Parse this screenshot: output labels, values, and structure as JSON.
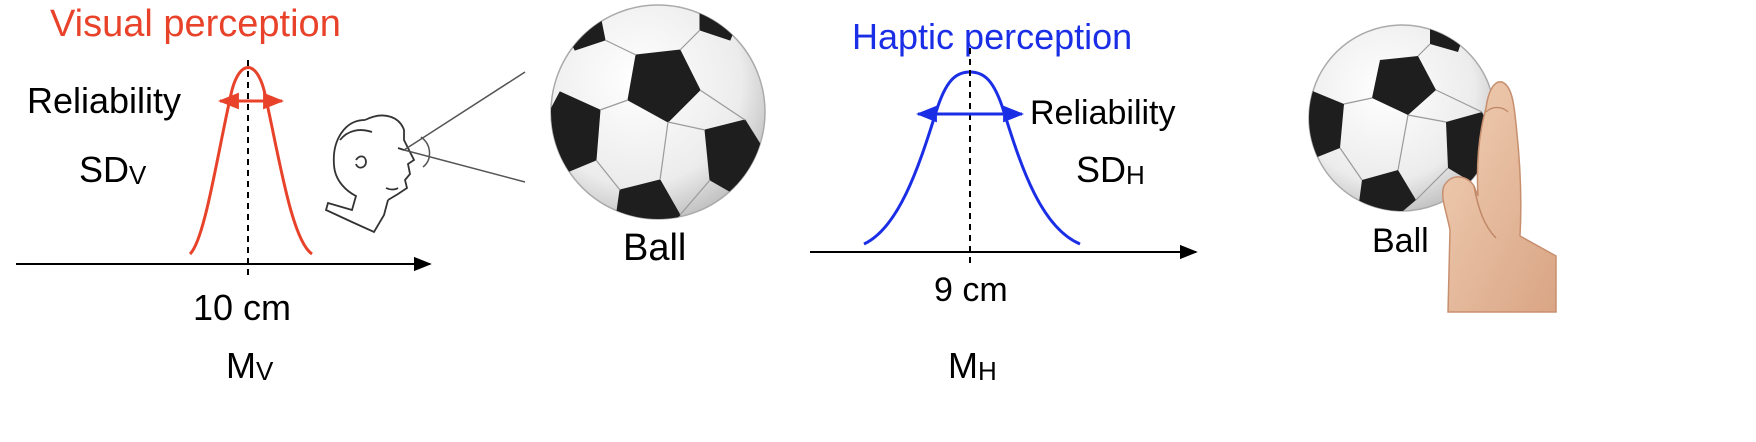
{
  "visual": {
    "title": "Visual perception",
    "title_color": "#e8432a",
    "reliability_label": "Reliability",
    "sd_main": "SD",
    "sd_sub": "V",
    "value_label": "10 cm",
    "mean_main": "M",
    "mean_sub": "V",
    "ball_label": "Ball"
  },
  "haptic": {
    "title": "Haptic perception",
    "title_color": "#1a2ee6",
    "reliability_label": "Reliability",
    "sd_main": "SD",
    "sd_sub": "H",
    "value_label": "9 cm",
    "mean_main": "M",
    "mean_sub": "H",
    "ball_label": "Ball"
  }
}
